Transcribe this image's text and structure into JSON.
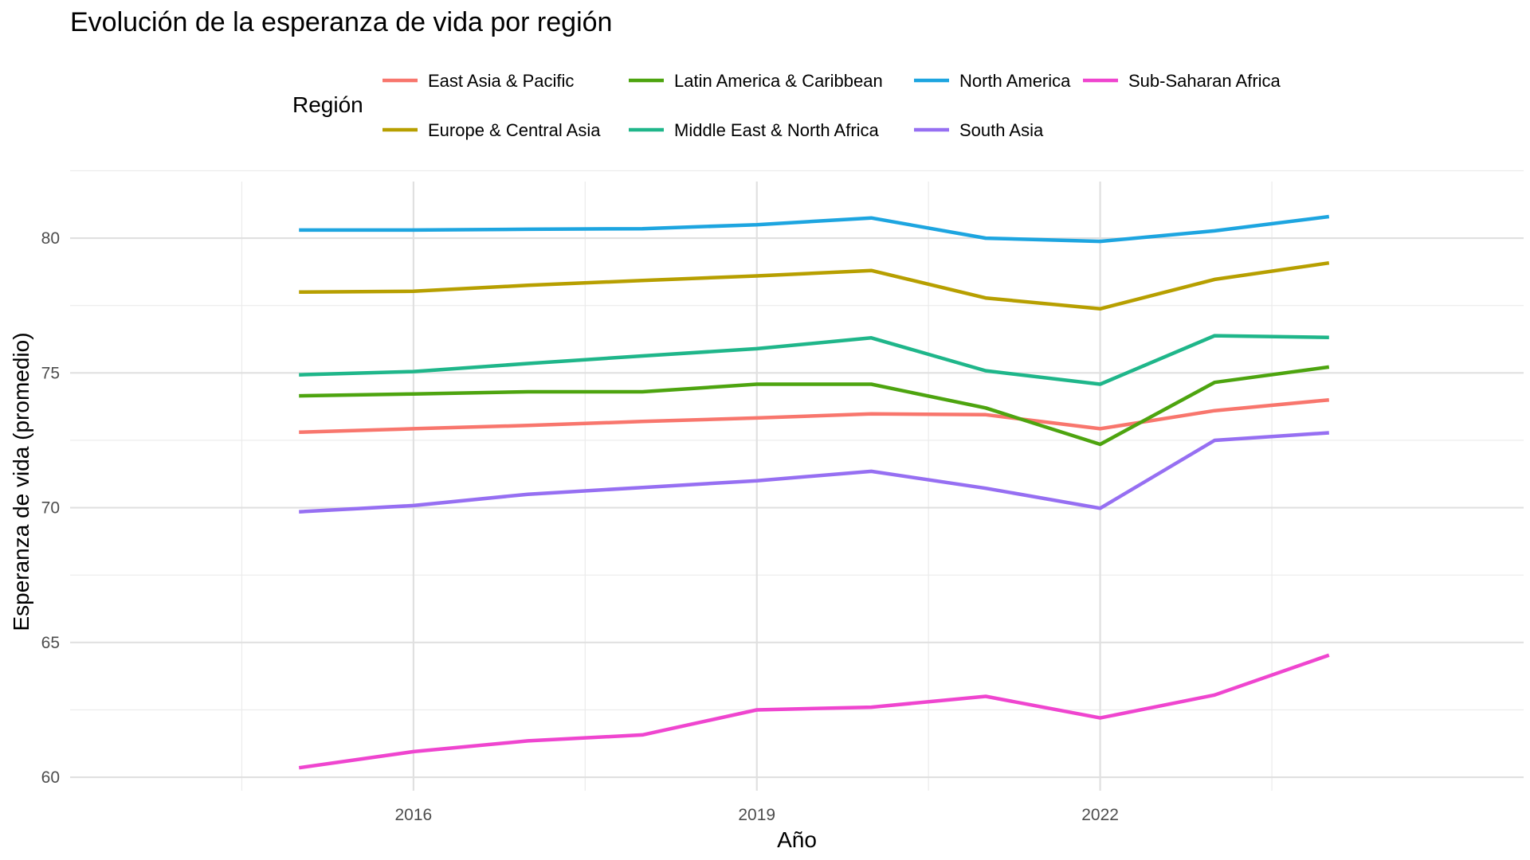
{
  "chart_data": {
    "type": "line",
    "title": "Evolución de la esperanza de vida por región",
    "xlabel": "Año",
    "ylabel": "Esperanza de vida (promedio)",
    "legend_title": "Región",
    "legend_position": "top",
    "grid": true,
    "xlim": [
      2013.0,
      2025.7
    ],
    "ylim": [
      59.5,
      82.1
    ],
    "xticks": [
      2016,
      2019,
      2022
    ],
    "yticks": [
      60,
      65,
      70,
      75,
      80
    ],
    "x": [
      2015,
      2016,
      2017,
      2018,
      2019,
      2020,
      2021,
      2022,
      2023,
      2024
    ],
    "series": [
      {
        "name": "East Asia & Pacific",
        "color": "#F8766D",
        "values": [
          72.8,
          72.93,
          73.05,
          73.2,
          73.33,
          73.48,
          73.45,
          72.93,
          73.6,
          74.0
        ]
      },
      {
        "name": "Europe & Central Asia",
        "color": "#B79F00",
        "values": [
          78.0,
          78.03,
          78.25,
          78.43,
          78.6,
          78.8,
          77.78,
          77.38,
          78.47,
          79.08
        ]
      },
      {
        "name": "Latin America & Caribbean",
        "color": "#4DA40F",
        "values": [
          74.15,
          74.22,
          74.3,
          74.3,
          74.58,
          74.58,
          73.7,
          72.35,
          74.65,
          75.22
        ]
      },
      {
        "name": "Middle East & North Africa",
        "color": "#1FB68A",
        "values": [
          74.93,
          75.05,
          75.35,
          75.63,
          75.9,
          76.3,
          75.08,
          74.58,
          76.38,
          76.32
        ]
      },
      {
        "name": "North America",
        "color": "#1DA5E0",
        "values": [
          80.3,
          80.3,
          80.33,
          80.35,
          80.5,
          80.75,
          80.0,
          79.88,
          80.27,
          80.8
        ]
      },
      {
        "name": "South Asia",
        "color": "#966FF2",
        "values": [
          69.85,
          70.08,
          70.5,
          70.75,
          71.0,
          71.35,
          70.72,
          69.98,
          72.5,
          72.78
        ]
      },
      {
        "name": "Sub-Saharan Africa",
        "color": "#EF45CF",
        "values": [
          60.35,
          60.95,
          61.35,
          61.57,
          62.5,
          62.6,
          63.0,
          62.2,
          63.05,
          64.53
        ]
      }
    ]
  }
}
